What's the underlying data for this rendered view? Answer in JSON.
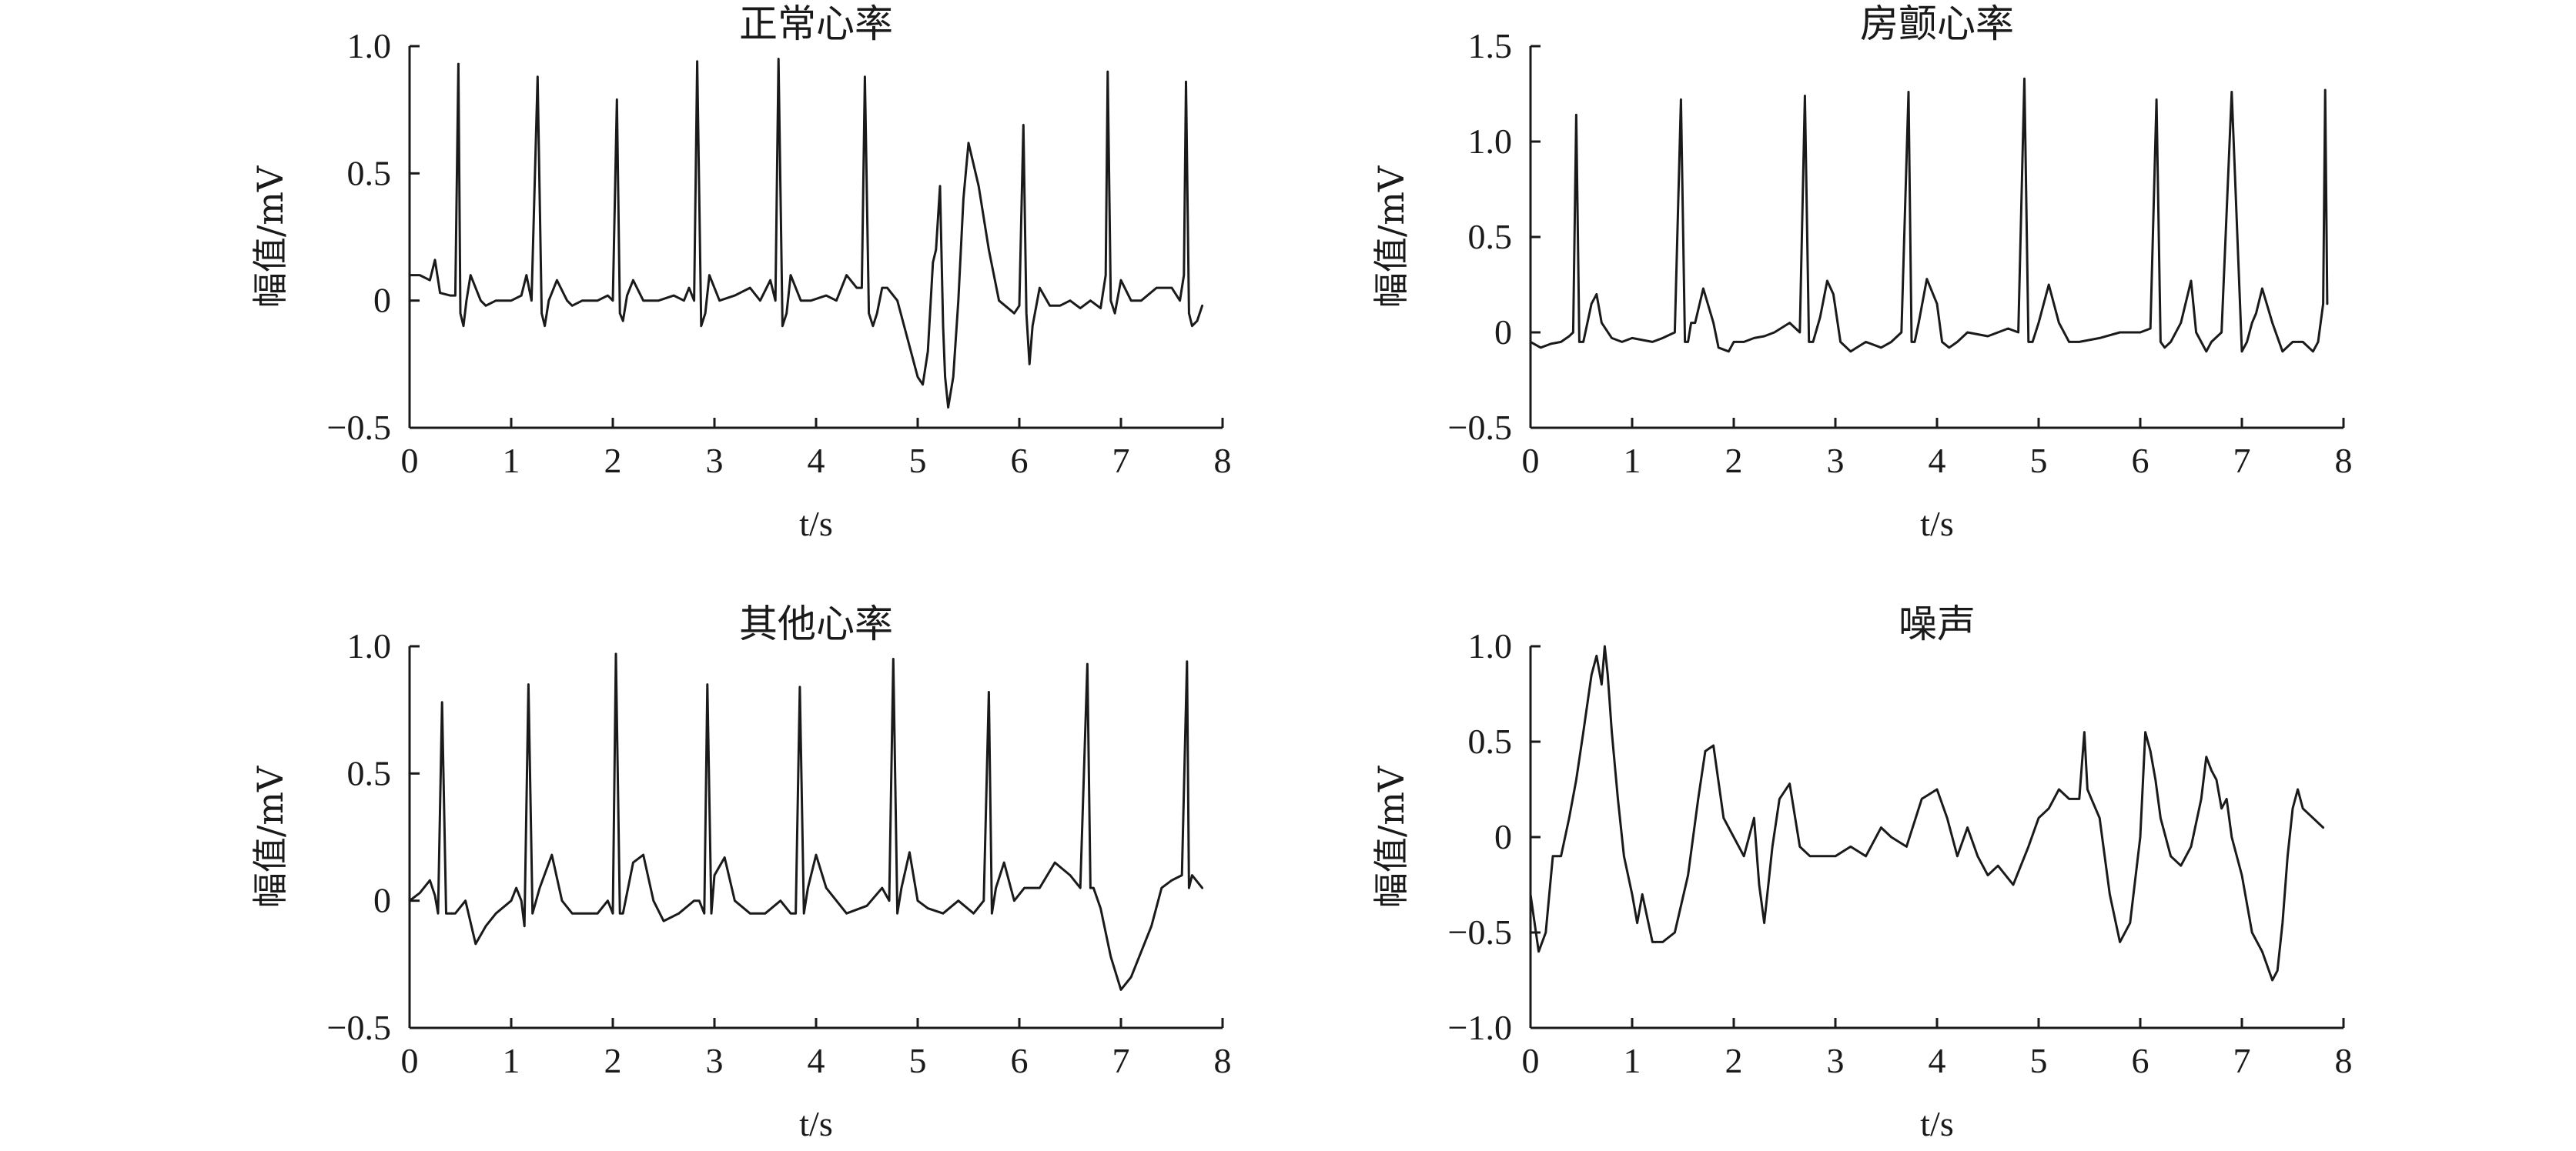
{
  "chart_data": [
    {
      "type": "line",
      "title": "正常心率",
      "ylabel": "幅值/mV",
      "xlabel": "t/s",
      "xlim": [
        0,
        8
      ],
      "ylim": [
        -0.5,
        1.0
      ],
      "xticks": [
        "0",
        "1",
        "2",
        "3",
        "4",
        "5",
        "6",
        "7",
        "8"
      ],
      "yticks": [
        "1.0",
        "0.5",
        "0",
        "−0.5"
      ],
      "ytick_values": [
        1.0,
        0.5,
        0,
        -0.5
      ],
      "series": [
        {
          "x": [
            0,
            0.1,
            0.2,
            0.25,
            0.3,
            0.4,
            0.45,
            0.48,
            0.5,
            0.53,
            0.56,
            0.6,
            0.7,
            0.75,
            0.85,
            1.0,
            1.1,
            1.15,
            1.2,
            1.26,
            1.3,
            1.33,
            1.37,
            1.45,
            1.55,
            1.6,
            1.7,
            1.85,
            1.95,
            2.0,
            2.04,
            2.07,
            2.1,
            2.14,
            2.2,
            2.3,
            2.45,
            2.6,
            2.7,
            2.75,
            2.8,
            2.83,
            2.87,
            2.91,
            2.95,
            3.05,
            3.2,
            3.35,
            3.45,
            3.55,
            3.6,
            3.63,
            3.67,
            3.71,
            3.75,
            3.85,
            3.95,
            4.1,
            4.2,
            4.3,
            4.4,
            4.45,
            4.48,
            4.52,
            4.56,
            4.6,
            4.65,
            4.7,
            4.8,
            4.9,
            5.0,
            5.05,
            5.1,
            5.15,
            5.18,
            5.22,
            5.25,
            5.27,
            5.3,
            5.35,
            5.4,
            5.45,
            5.5,
            5.6,
            5.7,
            5.8,
            5.95,
            6.0,
            6.04,
            6.07,
            6.1,
            6.13,
            6.2,
            6.3,
            6.4,
            6.5,
            6.6,
            6.7,
            6.8,
            6.85,
            6.87,
            6.9,
            6.94,
            7.0,
            7.1,
            7.2,
            7.35,
            7.5,
            7.58,
            7.62,
            7.64,
            7.67,
            7.7,
            7.75,
            7.8
          ],
          "y": [
            0.1,
            0.1,
            0.08,
            0.16,
            0.03,
            0.02,
            0.02,
            0.93,
            -0.05,
            -0.1,
            0.0,
            0.1,
            0.0,
            -0.02,
            0.0,
            0.0,
            0.02,
            0.1,
            0.0,
            0.88,
            -0.05,
            -0.1,
            0.0,
            0.08,
            0.0,
            -0.02,
            0.0,
            0.0,
            0.02,
            0.0,
            0.79,
            -0.05,
            -0.08,
            0.02,
            0.08,
            0.0,
            0.0,
            0.02,
            0.0,
            0.05,
            0.0,
            0.94,
            -0.1,
            -0.05,
            0.1,
            0.0,
            0.02,
            0.05,
            0.0,
            0.08,
            0.0,
            0.95,
            -0.1,
            -0.05,
            0.1,
            0.0,
            0.0,
            0.02,
            0.0,
            0.1,
            0.05,
            0.05,
            0.88,
            -0.05,
            -0.1,
            -0.05,
            0.05,
            0.05,
            0.0,
            -0.15,
            -0.3,
            -0.33,
            -0.2,
            0.15,
            0.2,
            0.45,
            -0.1,
            -0.3,
            -0.42,
            -0.3,
            0.0,
            0.4,
            0.62,
            0.45,
            0.2,
            0.0,
            -0.05,
            -0.02,
            0.69,
            -0.05,
            -0.25,
            -0.1,
            0.05,
            -0.02,
            -0.02,
            0.0,
            -0.03,
            0.0,
            -0.03,
            0.1,
            0.9,
            0.0,
            -0.05,
            0.08,
            0.0,
            0.0,
            0.05,
            0.05,
            0.0,
            0.1,
            0.86,
            -0.05,
            -0.1,
            -0.08,
            -0.02
          ]
        }
      ]
    },
    {
      "type": "line",
      "title": "房颤心率",
      "ylabel": "幅值/mV",
      "xlabel": "t/s",
      "xlim": [
        0,
        8
      ],
      "ylim": [
        -0.5,
        1.5
      ],
      "xticks": [
        "0",
        "1",
        "2",
        "3",
        "4",
        "5",
        "6",
        "7",
        "8"
      ],
      "yticks": [
        "1.5",
        "1.0",
        "0.5",
        "0",
        "−0.5"
      ],
      "ytick_values": [
        1.5,
        1.0,
        0.5,
        0,
        -0.5
      ],
      "series": [
        {
          "x": [
            0,
            0.1,
            0.2,
            0.3,
            0.38,
            0.42,
            0.45,
            0.48,
            0.52,
            0.6,
            0.65,
            0.7,
            0.8,
            0.9,
            1.0,
            1.1,
            1.2,
            1.3,
            1.42,
            1.48,
            1.52,
            1.55,
            1.58,
            1.62,
            1.7,
            1.8,
            1.85,
            1.95,
            2.0,
            2.1,
            2.2,
            2.3,
            2.4,
            2.55,
            2.65,
            2.7,
            2.74,
            2.78,
            2.85,
            2.92,
            2.98,
            3.05,
            3.15,
            3.3,
            3.45,
            3.55,
            3.65,
            3.72,
            3.75,
            3.78,
            3.82,
            3.9,
            4.0,
            4.05,
            4.12,
            4.2,
            4.3,
            4.5,
            4.7,
            4.8,
            4.86,
            4.9,
            4.94,
            5.0,
            5.1,
            5.2,
            5.3,
            5.4,
            5.6,
            5.8,
            6.0,
            6.1,
            6.16,
            6.2,
            6.24,
            6.3,
            6.4,
            6.5,
            6.55,
            6.65,
            6.7,
            6.8,
            6.9,
            7.0,
            7.05,
            7.1,
            7.14,
            7.2,
            7.3,
            7.4,
            7.5,
            7.6,
            7.7,
            7.75,
            7.8,
            7.82,
            7.84
          ],
          "y": [
            -0.05,
            -0.08,
            -0.06,
            -0.05,
            -0.02,
            0.0,
            1.14,
            -0.05,
            -0.05,
            0.15,
            0.2,
            0.05,
            -0.03,
            -0.05,
            -0.03,
            -0.04,
            -0.05,
            -0.03,
            0.0,
            1.22,
            -0.05,
            -0.05,
            0.05,
            0.05,
            0.23,
            0.05,
            -0.08,
            -0.1,
            -0.05,
            -0.05,
            -0.03,
            -0.02,
            0.0,
            0.05,
            0.0,
            1.24,
            -0.05,
            -0.05,
            0.08,
            0.27,
            0.2,
            -0.05,
            -0.1,
            -0.05,
            -0.08,
            -0.05,
            0.0,
            1.26,
            -0.05,
            -0.05,
            0.05,
            0.28,
            0.15,
            -0.05,
            -0.08,
            -0.05,
            0.0,
            -0.02,
            0.02,
            0.0,
            1.33,
            -0.05,
            -0.05,
            0.05,
            0.25,
            0.05,
            -0.05,
            -0.05,
            -0.03,
            0.0,
            0.0,
            0.02,
            1.22,
            -0.05,
            -0.08,
            -0.05,
            0.05,
            0.27,
            0.0,
            -0.1,
            -0.05,
            0.0,
            1.26,
            -0.1,
            -0.05,
            0.05,
            0.1,
            0.23,
            0.05,
            -0.1,
            -0.05,
            -0.05,
            -0.1,
            -0.05,
            0.15,
            1.27,
            0.15
          ]
        }
      ]
    },
    {
      "type": "line",
      "title": "其他心率",
      "ylabel": "幅值/mV",
      "xlabel": "t/s",
      "xlim": [
        0,
        8
      ],
      "ylim": [
        -0.5,
        1.0
      ],
      "xticks": [
        "0",
        "1",
        "2",
        "3",
        "4",
        "5",
        "6",
        "7",
        "8"
      ],
      "yticks": [
        "1.0",
        "0.5",
        "0",
        "−0.5"
      ],
      "ytick_values": [
        1.0,
        0.5,
        0,
        -0.5
      ],
      "series": [
        {
          "x": [
            0,
            0.1,
            0.2,
            0.25,
            0.28,
            0.32,
            0.36,
            0.45,
            0.55,
            0.65,
            0.75,
            0.85,
            1.0,
            1.05,
            1.1,
            1.13,
            1.17,
            1.21,
            1.28,
            1.4,
            1.5,
            1.6,
            1.7,
            1.85,
            1.95,
            2.0,
            2.03,
            2.07,
            2.1,
            2.2,
            2.3,
            2.4,
            2.5,
            2.65,
            2.8,
            2.85,
            2.9,
            2.93,
            2.97,
            3.0,
            3.1,
            3.2,
            3.35,
            3.5,
            3.65,
            3.75,
            3.8,
            3.84,
            3.88,
            3.92,
            4.0,
            4.1,
            4.3,
            4.5,
            4.65,
            4.72,
            4.76,
            4.8,
            4.84,
            4.92,
            5.0,
            5.1,
            5.25,
            5.4,
            5.55,
            5.65,
            5.7,
            5.73,
            5.77,
            5.85,
            5.95,
            6.05,
            6.2,
            6.35,
            6.5,
            6.6,
            6.67,
            6.7,
            6.73,
            6.8,
            6.9,
            7.0,
            7.1,
            7.2,
            7.3,
            7.4,
            7.5,
            7.6,
            7.65,
            7.67,
            7.7,
            7.8
          ],
          "y": [
            0.0,
            0.03,
            0.08,
            0.02,
            -0.05,
            0.78,
            -0.05,
            -0.05,
            0.0,
            -0.17,
            -0.1,
            -0.05,
            0.0,
            0.05,
            0.0,
            -0.1,
            0.85,
            -0.05,
            0.05,
            0.18,
            0.0,
            -0.05,
            -0.05,
            -0.05,
            0.0,
            -0.05,
            0.97,
            -0.05,
            -0.05,
            0.15,
            0.18,
            0.0,
            -0.08,
            -0.05,
            0.0,
            0.0,
            -0.05,
            0.85,
            -0.05,
            0.1,
            0.17,
            0.0,
            -0.05,
            -0.05,
            0.0,
            -0.05,
            -0.05,
            0.84,
            -0.05,
            0.05,
            0.18,
            0.05,
            -0.05,
            -0.02,
            0.05,
            0.0,
            0.95,
            -0.05,
            0.05,
            0.19,
            0.0,
            -0.03,
            -0.05,
            0.0,
            -0.05,
            0.0,
            0.82,
            -0.05,
            0.05,
            0.15,
            0.0,
            0.05,
            0.05,
            0.15,
            0.1,
            0.05,
            0.93,
            0.05,
            0.05,
            -0.03,
            -0.22,
            -0.35,
            -0.3,
            -0.2,
            -0.1,
            0.05,
            0.08,
            0.1,
            0.94,
            0.05,
            0.1,
            0.05
          ]
        }
      ]
    },
    {
      "type": "line",
      "title": "噪声",
      "ylabel": "幅值/mV",
      "xlabel": "t/s",
      "xlim": [
        0,
        8
      ],
      "ylim": [
        -1.0,
        1.0
      ],
      "xticks": [
        "0",
        "1",
        "2",
        "3",
        "4",
        "5",
        "6",
        "7",
        "8"
      ],
      "yticks": [
        "1.0",
        "0.5",
        "0",
        "−0.5",
        "−1.0"
      ],
      "ytick_values": [
        1.0,
        0.5,
        0,
        -0.5,
        -1.0
      ],
      "series": [
        {
          "x": [
            0,
            0.08,
            0.15,
            0.22,
            0.3,
            0.38,
            0.45,
            0.52,
            0.6,
            0.65,
            0.7,
            0.73,
            0.76,
            0.8,
            0.86,
            0.92,
            1.0,
            1.05,
            1.1,
            1.2,
            1.3,
            1.42,
            1.55,
            1.65,
            1.72,
            1.8,
            1.9,
            2.0,
            2.1,
            2.2,
            2.25,
            2.3,
            2.38,
            2.45,
            2.55,
            2.65,
            2.75,
            2.85,
            3.0,
            3.15,
            3.3,
            3.45,
            3.55,
            3.7,
            3.85,
            4.0,
            4.1,
            4.2,
            4.3,
            4.4,
            4.5,
            4.6,
            4.75,
            4.9,
            5.0,
            5.1,
            5.2,
            5.3,
            5.4,
            5.45,
            5.48,
            5.52,
            5.6,
            5.7,
            5.8,
            5.9,
            6.0,
            6.05,
            6.1,
            6.15,
            6.2,
            6.3,
            6.4,
            6.5,
            6.6,
            6.65,
            6.7,
            6.75,
            6.8,
            6.85,
            6.9,
            7.0,
            7.1,
            7.2,
            7.3,
            7.35,
            7.4,
            7.45,
            7.5,
            7.55,
            7.6,
            7.7,
            7.8
          ],
          "y": [
            -0.3,
            -0.6,
            -0.5,
            -0.1,
            -0.1,
            0.1,
            0.3,
            0.55,
            0.85,
            0.95,
            0.8,
            1.0,
            0.85,
            0.55,
            0.2,
            -0.1,
            -0.3,
            -0.45,
            -0.3,
            -0.55,
            -0.55,
            -0.5,
            -0.2,
            0.2,
            0.45,
            0.48,
            0.1,
            0.0,
            -0.1,
            0.1,
            -0.25,
            -0.45,
            -0.05,
            0.2,
            0.28,
            -0.05,
            -0.1,
            -0.1,
            -0.1,
            -0.05,
            -0.1,
            0.05,
            0.0,
            -0.05,
            0.2,
            0.25,
            0.1,
            -0.1,
            0.05,
            -0.1,
            -0.2,
            -0.15,
            -0.25,
            -0.05,
            0.1,
            0.15,
            0.25,
            0.2,
            0.2,
            0.55,
            0.25,
            0.2,
            0.1,
            -0.3,
            -0.55,
            -0.45,
            0.0,
            0.55,
            0.45,
            0.3,
            0.1,
            -0.1,
            -0.15,
            -0.05,
            0.2,
            0.42,
            0.35,
            0.3,
            0.15,
            0.2,
            0.0,
            -0.2,
            -0.5,
            -0.6,
            -0.75,
            -0.7,
            -0.45,
            -0.1,
            0.15,
            0.25,
            0.15,
            0.1,
            0.05
          ]
        }
      ]
    }
  ]
}
